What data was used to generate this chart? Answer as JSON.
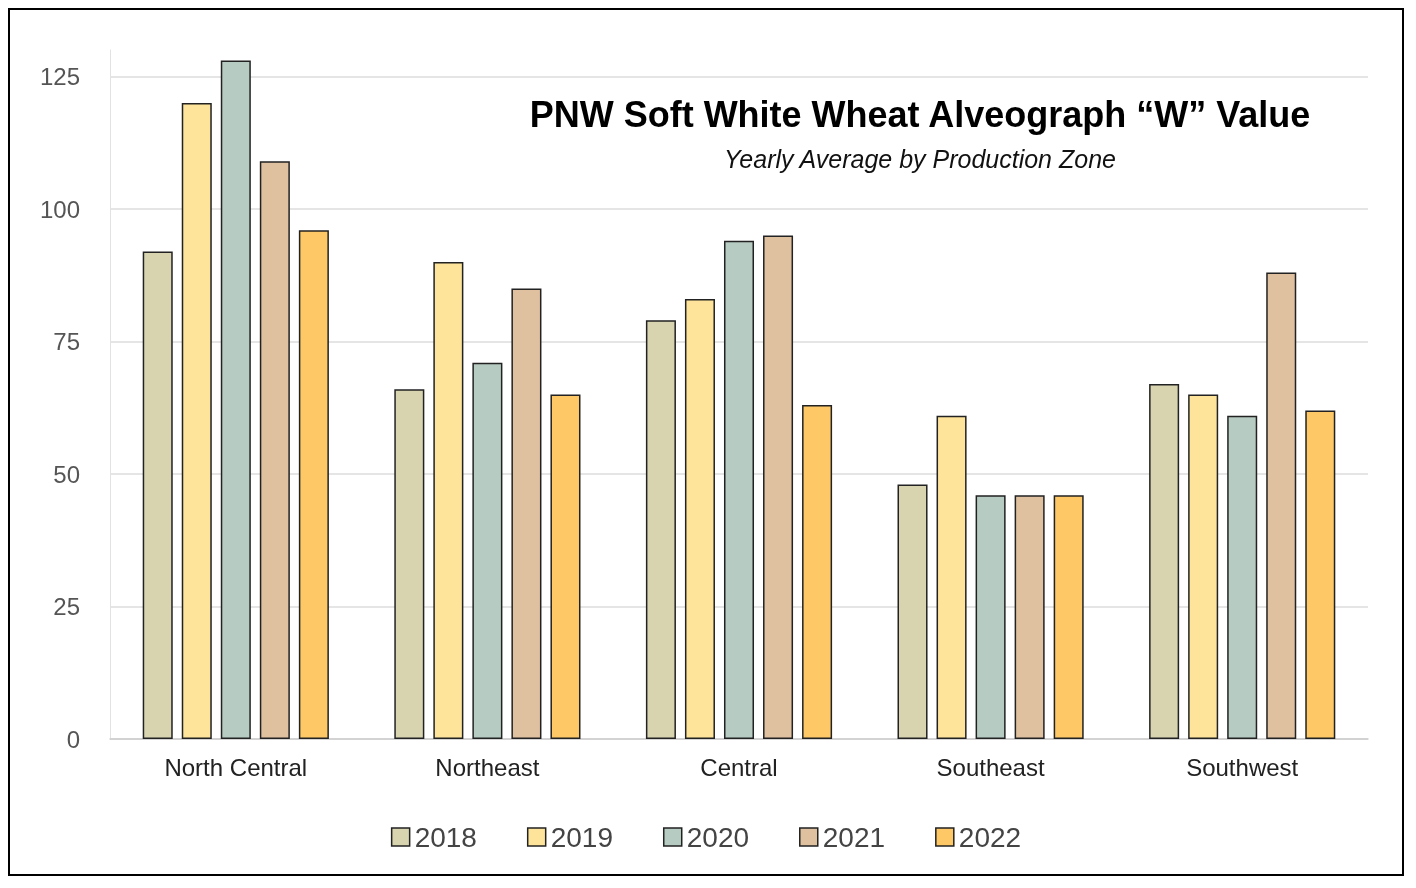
{
  "chart_data": {
    "type": "bar",
    "title": "PNW Soft White Wheat Alveograph “W” Value",
    "subtitle": "Yearly Average by Production Zone",
    "categories": [
      "North Central",
      "Northeast",
      "Central",
      "Southeast",
      "Southwest"
    ],
    "series": [
      {
        "name": "2018",
        "color": "#d9d4b0",
        "values": [
          92,
          66,
          79,
          48,
          67
        ]
      },
      {
        "name": "2019",
        "color": "#fde49a",
        "values": [
          120,
          90,
          83,
          61,
          65
        ]
      },
      {
        "name": "2020",
        "color": "#b6cbc2",
        "values": [
          128,
          71,
          94,
          46,
          61
        ]
      },
      {
        "name": "2021",
        "color": "#dfc1a0",
        "values": [
          109,
          85,
          95,
          46,
          88
        ]
      },
      {
        "name": "2022",
        "color": "#fdc865",
        "values": [
          96,
          65,
          63,
          46,
          62
        ]
      }
    ],
    "ylim": [
      0,
      130
    ],
    "yticks": [
      0,
      25,
      50,
      75,
      100,
      125
    ],
    "grid": "y",
    "legend": "bottom"
  }
}
